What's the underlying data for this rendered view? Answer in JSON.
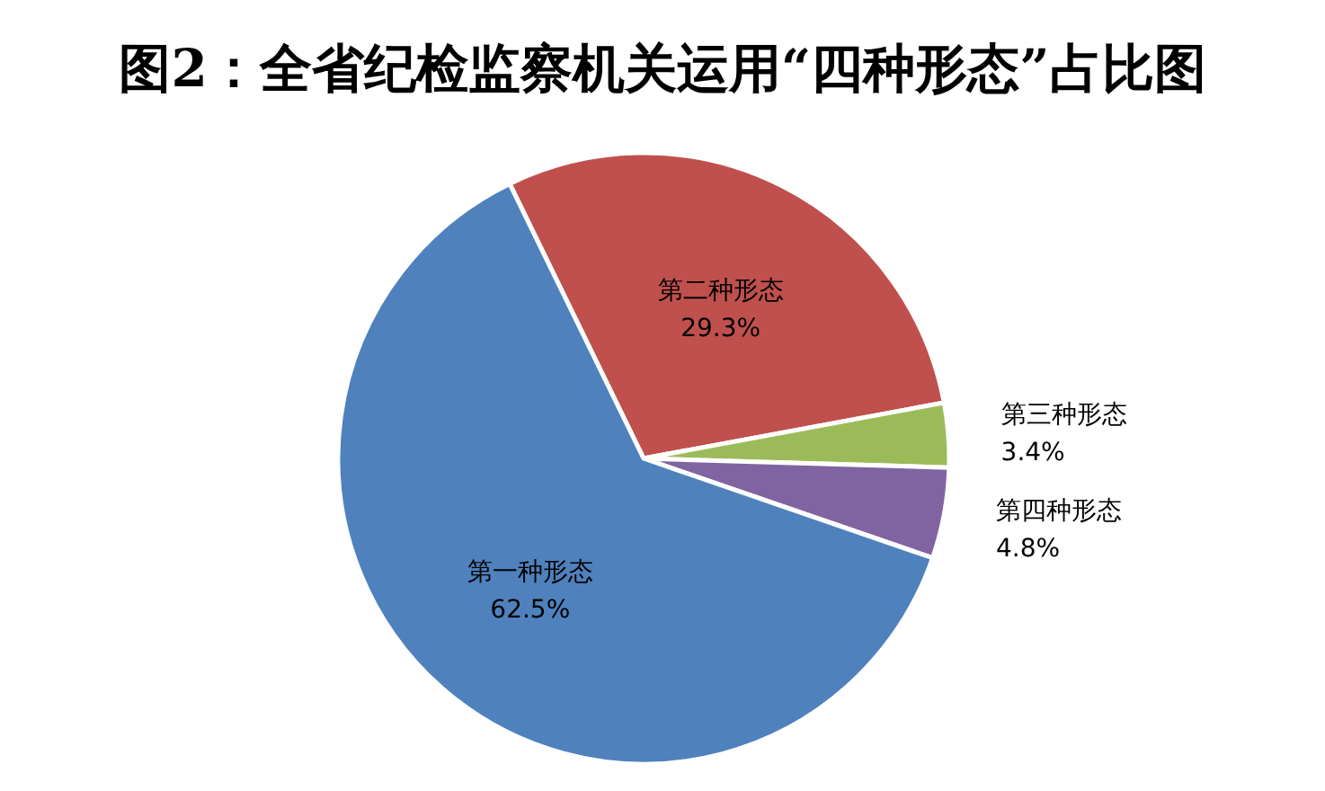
{
  "chart_data": {
    "type": "pie",
    "title": "图2：全省纪检监察机关运用“四种形态”占比图",
    "categories": [
      "第二种形态",
      "第三种形态",
      "第四种形态",
      "第一种形态"
    ],
    "values": [
      29.3,
      3.4,
      4.8,
      62.5
    ],
    "value_labels": [
      "29.3%",
      "3.4%",
      "4.8%",
      "62.5%"
    ],
    "colors": [
      "#c0504d",
      "#9bbb59",
      "#8064a2",
      "#4f81bd"
    ]
  }
}
